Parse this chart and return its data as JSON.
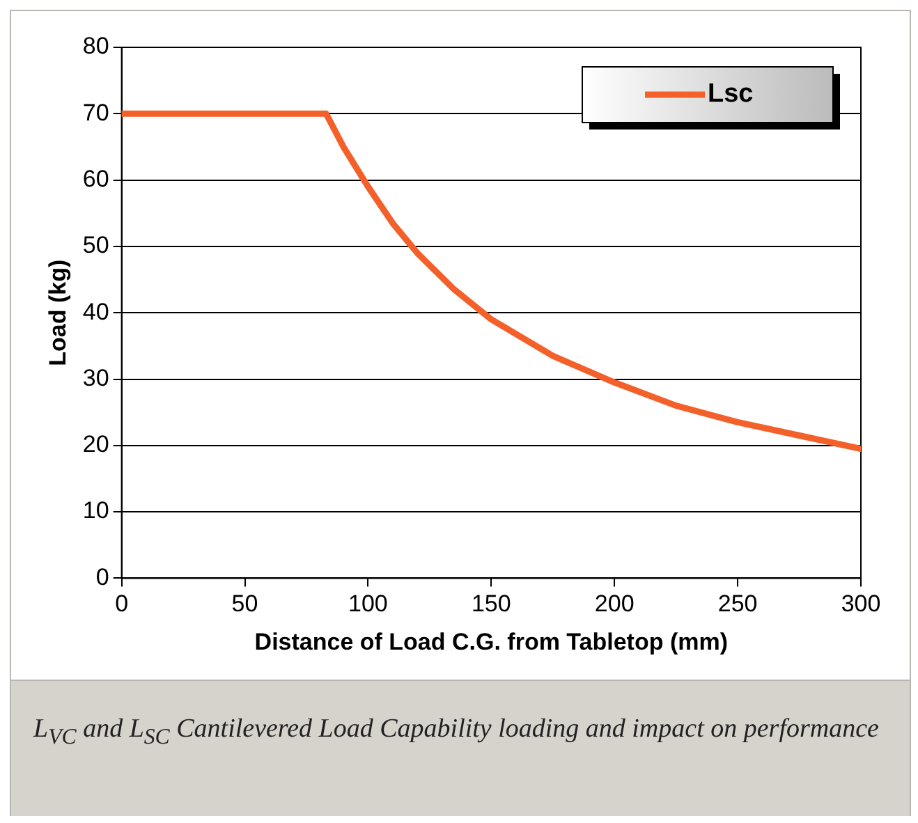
{
  "chart_data": {
    "type": "line",
    "xlabel": "Distance of Load C.G. from Tabletop (mm)",
    "ylabel": "Load (kg)",
    "x": [
      0,
      83,
      90,
      100,
      110,
      120,
      135,
      150,
      175,
      200,
      225,
      250,
      275,
      300
    ],
    "series": [
      {
        "name": "Lsc",
        "color": "#f4602a",
        "values": [
          70,
          70,
          65,
          59,
          53.5,
          49,
          43.5,
          39,
          33.5,
          29.5,
          26,
          23.5,
          21.5,
          19.5
        ]
      }
    ],
    "xlim": [
      0,
      300
    ],
    "xticks": [
      0,
      50,
      100,
      150,
      200,
      250,
      300
    ],
    "ylim": [
      0,
      80
    ],
    "yticks": [
      0,
      10,
      20,
      30,
      40,
      50,
      60,
      70,
      80
    ],
    "grid": "y",
    "legend": "top right",
    "marker": "none",
    "line_style": "solid",
    "annotations": [
      "L$_{VC}$ and L$_{SC}$ Cantilevered Load Capability loading and impact on performance"
    ]
  }
}
